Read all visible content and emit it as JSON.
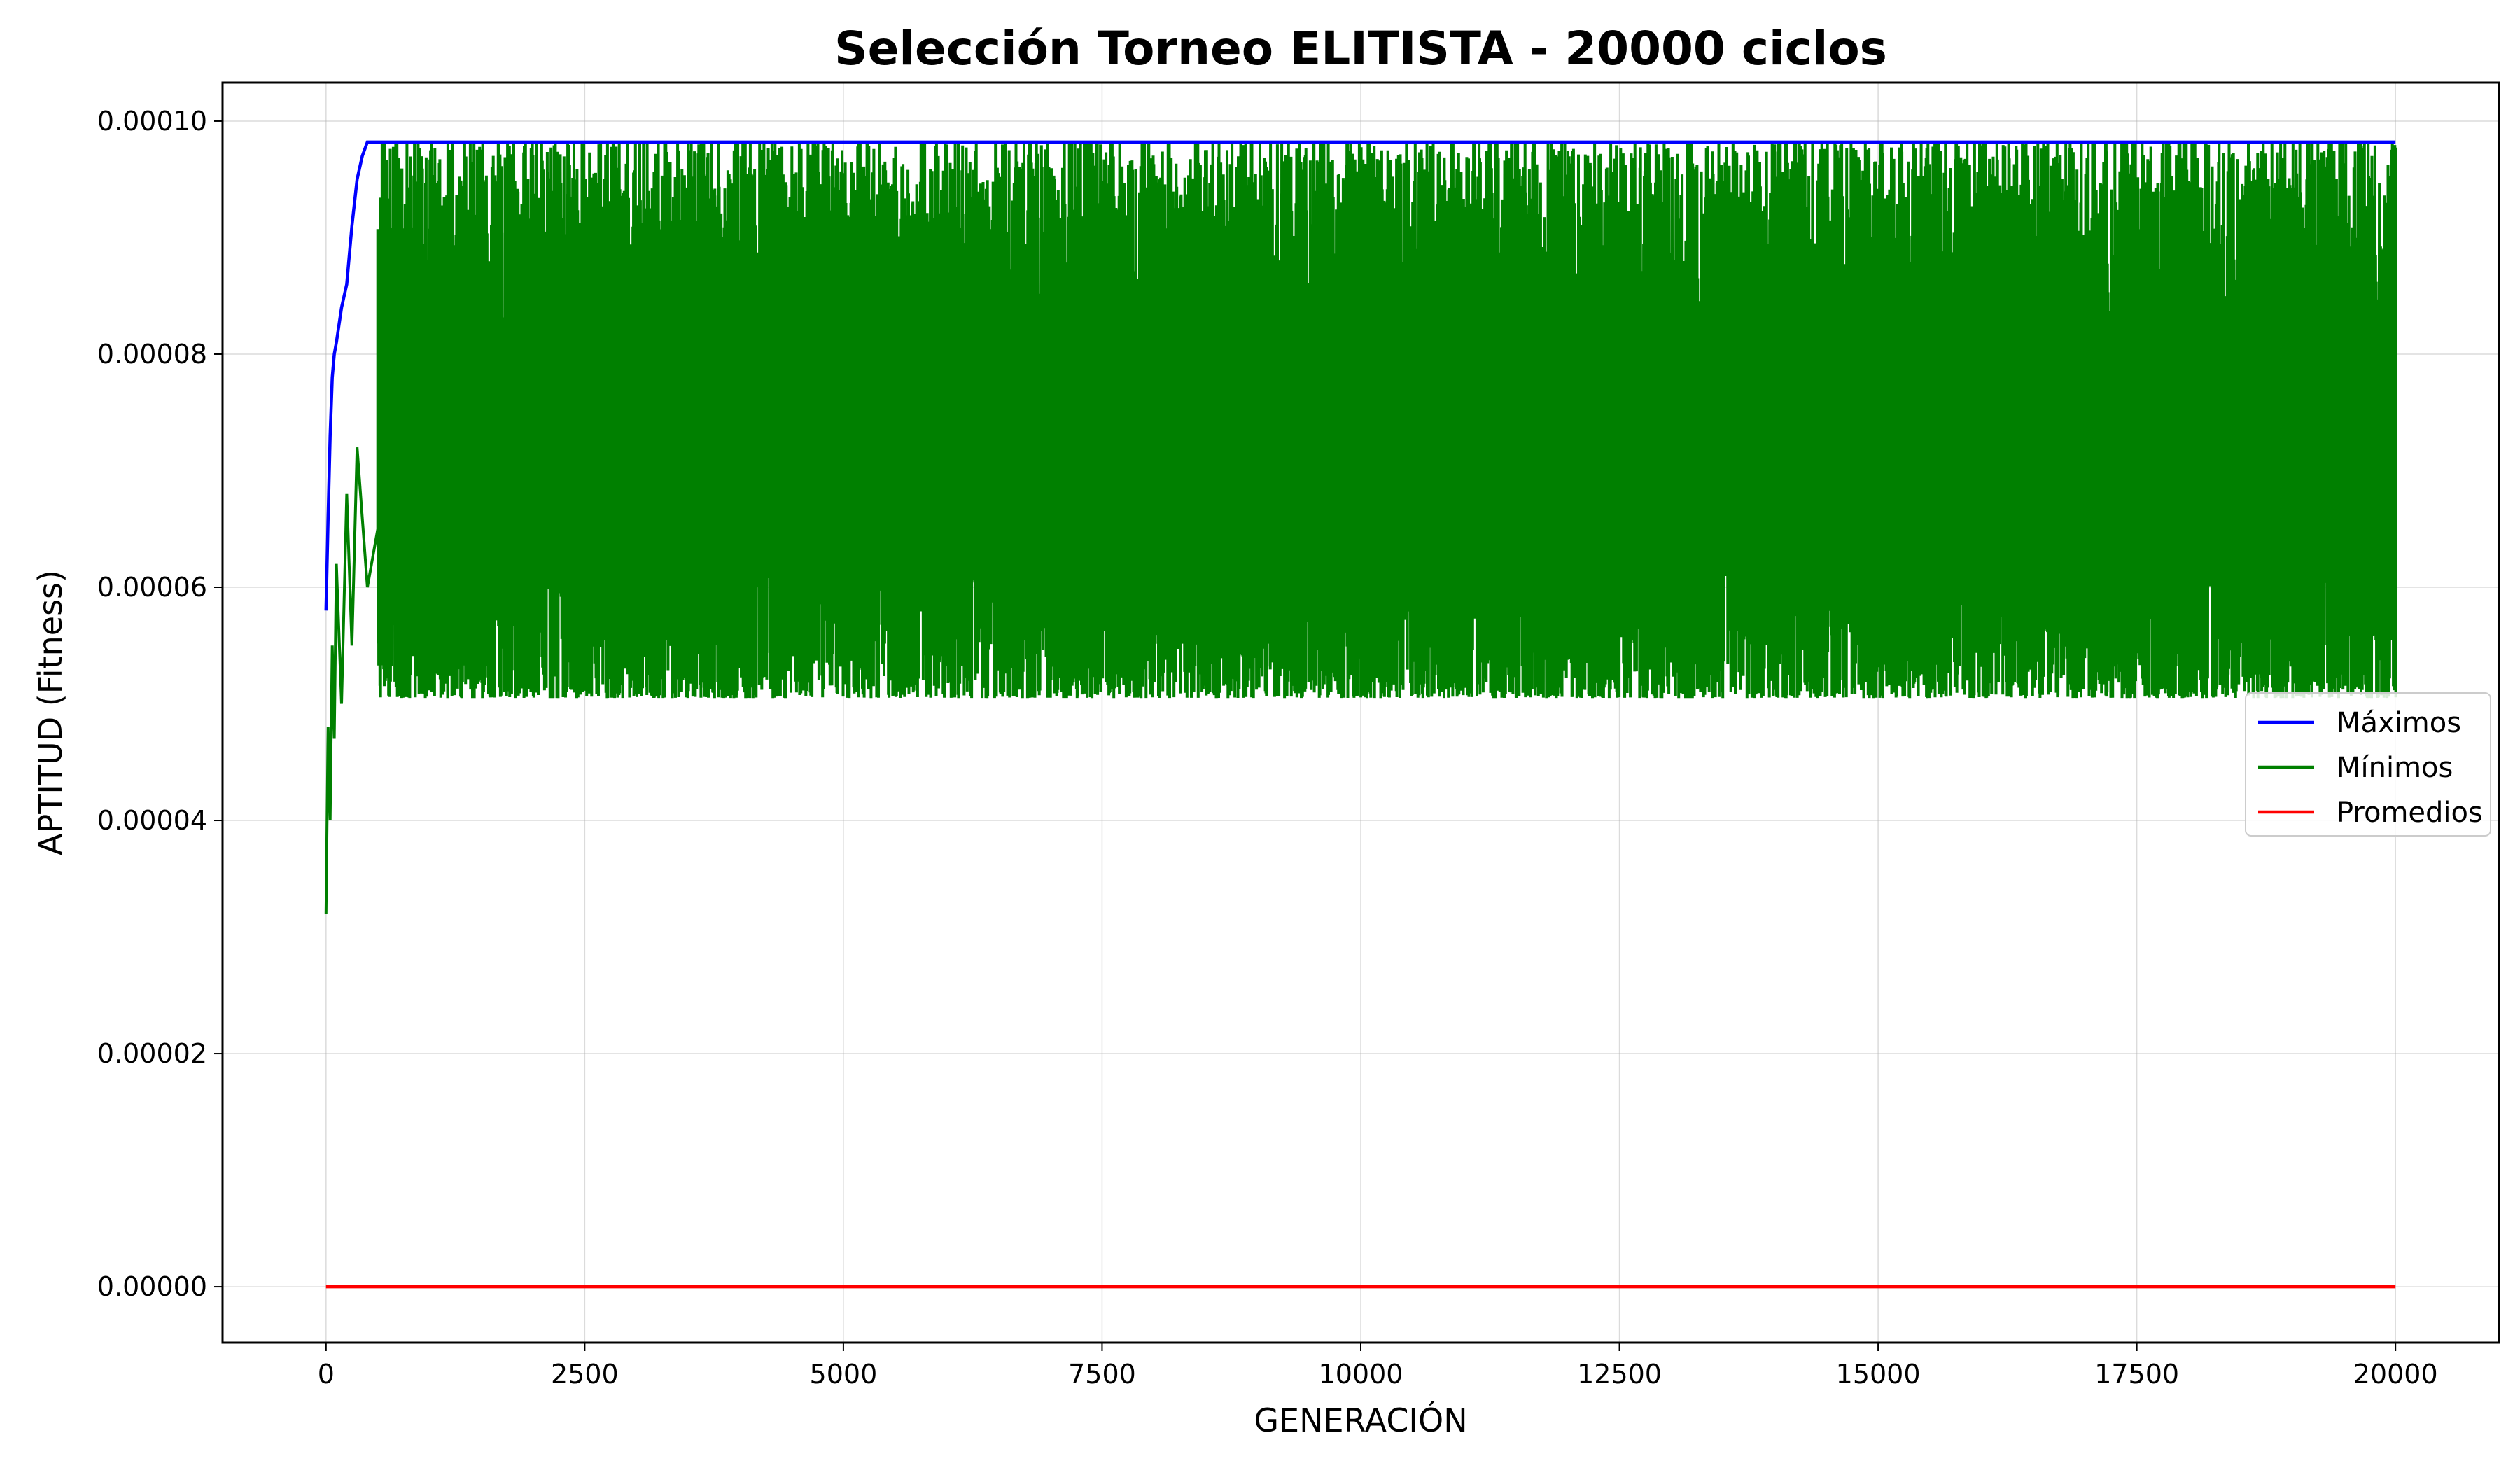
{
  "chart_data": {
    "type": "line",
    "title": "Selección Torneo ELITISTA - 20000 ciclos",
    "xlabel": "GENERACIÓN",
    "ylabel": "APTITUD (Fitness)",
    "xlim": [
      -1000,
      21000
    ],
    "ylim": [
      -4.8e-06,
      0.0001033
    ],
    "xticks": [
      0,
      2500,
      5000,
      7500,
      10000,
      12500,
      15000,
      17500,
      20000
    ],
    "xtick_labels": [
      "0",
      "2500",
      "5000",
      "7500",
      "10000",
      "12500",
      "15000",
      "17500",
      "20000"
    ],
    "yticks": [
      0,
      2e-05,
      4e-05,
      6e-05,
      8e-05,
      0.0001
    ],
    "ytick_labels": [
      "0.00000",
      "0.00002",
      "0.00004",
      "0.00006",
      "0.00008",
      "0.00010"
    ],
    "grid": true,
    "legend": {
      "placement": "center-right"
    },
    "series": [
      {
        "name": "Máximos",
        "color": "#0000ff",
        "x": [
          0,
          20,
          40,
          60,
          80,
          100,
          150,
          200,
          250,
          300,
          350,
          400,
          500,
          1000,
          5000,
          10000,
          15000,
          20000
        ],
        "values": [
          5.8e-05,
          6.6e-05,
          7.3e-05,
          7.8e-05,
          8e-05,
          8.1e-05,
          8.4e-05,
          8.6e-05,
          9.1e-05,
          9.5e-05,
          9.7e-05,
          9.82e-05,
          9.82e-05,
          9.82e-05,
          9.82e-05,
          9.82e-05,
          9.82e-05,
          9.82e-05
        ]
      },
      {
        "name": "Mínimos",
        "color": "#008000",
        "x": [
          0,
          20,
          40,
          60,
          80,
          100,
          150,
          200,
          250,
          300,
          400,
          500,
          1000,
          2500,
          5000,
          7500,
          10000,
          12500,
          15000,
          17500,
          20000
        ],
        "values": [
          3.2e-05,
          4.8e-05,
          4e-05,
          5.5e-05,
          4.7e-05,
          6.2e-05,
          5e-05,
          6.8e-05,
          5.5e-05,
          7.2e-05,
          6e-05,
          6.5e-05,
          7e-05,
          6.8e-05,
          6.6e-05,
          6.9e-05,
          6.7e-05,
          6.5e-05,
          6.8e-05,
          6.6e-05,
          7.7e-05
        ],
        "band_low": 5.05e-05,
        "band_high": 9.82e-05
      },
      {
        "name": "Promedios",
        "color": "#ff0000",
        "x": [
          0,
          20000
        ],
        "values": [
          0,
          0
        ]
      }
    ]
  }
}
